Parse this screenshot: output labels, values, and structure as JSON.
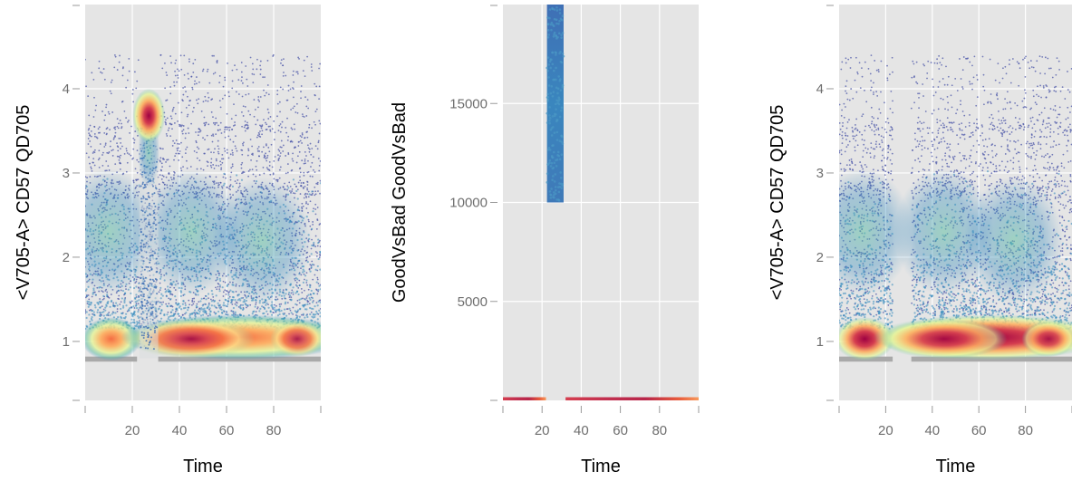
{
  "colors": {
    "panel_bg": "#e5e5e5",
    "grid": "#ffffff",
    "axis": "#9a9a9a",
    "sparse_point": "#4b55a8",
    "baseline_band": "#a9a9a9",
    "palette_low_to_high": [
      "#5e4fa2",
      "#3288bd",
      "#66c2a5",
      "#abdda4",
      "#e6f598",
      "#fee08b",
      "#fdae61",
      "#f46d43",
      "#d53e4f",
      "#9e0142"
    ]
  },
  "chart_data": [
    {
      "type": "scatter",
      "title": "",
      "xlabel": "Time",
      "ylabel": "<V705-A> CD57 QD705",
      "xlim": [
        0,
        100
      ],
      "ylim": [
        0.3,
        5.0
      ],
      "x_ticks": [
        20,
        40,
        60,
        80
      ],
      "y_ticks": [
        1,
        2,
        3,
        4
      ],
      "grid": true,
      "legend": "none",
      "point_coloring": "density (spectral palette)",
      "gated_time_gap": null,
      "clusters": [
        {
          "label": "main population",
          "x_range": [
            0,
            100
          ],
          "y_center": 1.0,
          "color": "#e85b3c"
        },
        {
          "label": "high CD57 spike",
          "x_range": [
            23,
            31
          ],
          "y_center": 3.7,
          "color": "#9e0142"
        },
        {
          "label": "diffuse population",
          "x_range": [
            0,
            100
          ],
          "y_range": [
            1.3,
            3.0
          ],
          "color": "#4ab0b0"
        }
      ]
    },
    {
      "type": "scatter",
      "title": "",
      "xlabel": "Time",
      "ylabel": "GoodVsBad GoodVsBad",
      "xlim": [
        0,
        100
      ],
      "ylim": [
        0,
        20000
      ],
      "x_ticks": [
        20,
        40,
        60,
        80
      ],
      "y_ticks": [
        5000,
        10000,
        15000
      ],
      "grid": true,
      "legend": "none",
      "point_coloring": "density (spectral palette)",
      "clusters": [
        {
          "label": "flagged bad events",
          "x_range": [
            22,
            31
          ],
          "y_range": [
            10000,
            20000
          ],
          "color": "#3a7fbf"
        },
        {
          "label": "good events",
          "x_range": [
            0,
            100
          ],
          "y_center": 0,
          "color": "#c2304f"
        }
      ]
    },
    {
      "type": "scatter",
      "title": "",
      "xlabel": "Time",
      "ylabel": "<V705-A> CD57 QD705",
      "xlim": [
        0,
        100
      ],
      "ylim": [
        0.3,
        5.0
      ],
      "x_ticks": [
        20,
        40,
        60,
        80
      ],
      "y_ticks": [
        1,
        2,
        3,
        4
      ],
      "grid": true,
      "legend": "none",
      "point_coloring": "density (spectral palette)",
      "gated_time_gap": [
        23,
        31
      ],
      "clusters": [
        {
          "label": "main population",
          "x_range": [
            0,
            100
          ],
          "y_center": 1.0,
          "color": "#c2304f"
        },
        {
          "label": "diffuse population",
          "x_range": [
            0,
            100
          ],
          "y_range": [
            1.3,
            3.0
          ],
          "color": "#4ab0b0"
        }
      ]
    }
  ]
}
